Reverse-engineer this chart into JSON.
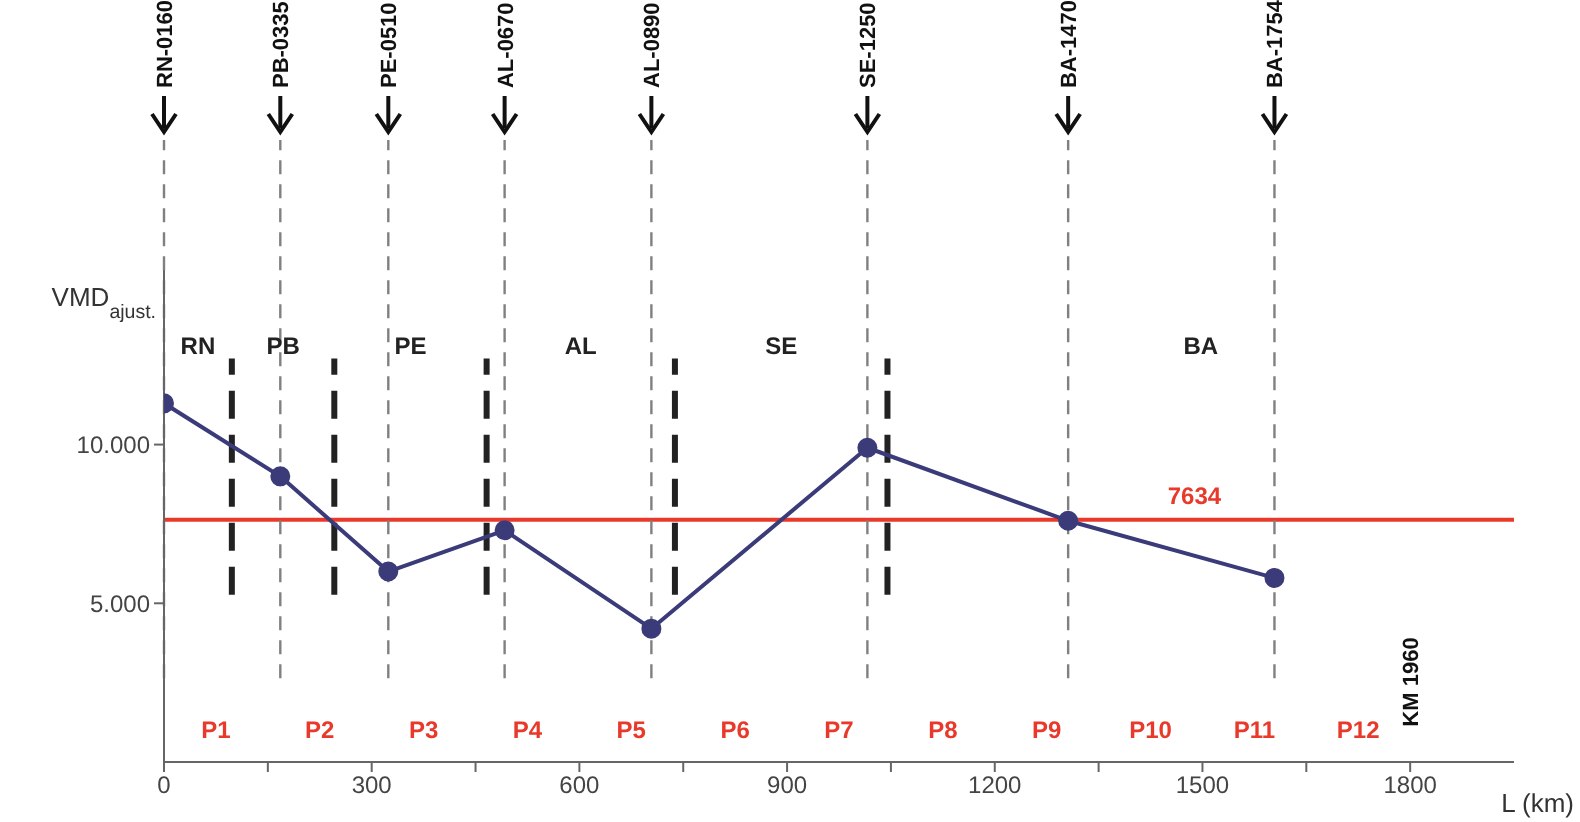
{
  "chart_data": {
    "type": "line",
    "xlabel": "L (km)",
    "ylabel": "VMD$_{ajust.}$",
    "x": [
      0,
      168,
      324,
      492,
      704,
      1016,
      1306,
      1604
    ],
    "series": [
      {
        "color": "#3b3b7a",
        "values": [
          11300,
          9000,
          6000,
          7300,
          4200,
          9900,
          7600,
          5800
        ]
      }
    ],
    "marker": "circle",
    "grid": false,
    "xlim": [
      0,
      1950
    ],
    "ylim": [
      0,
      15500
    ],
    "xticks": [
      {
        "value": 0,
        "label": "0"
      },
      {
        "value": 150,
        "label": null
      },
      300,
      {
        "value": 450,
        "label": null
      },
      600,
      {
        "value": 750,
        "label": null
      },
      900,
      {
        "value": 1050,
        "label": null
      },
      1200,
      {
        "value": 1350,
        "label": null
      },
      1500,
      {
        "value": 1650,
        "label": null
      },
      1800
    ],
    "yticks": [
      {
        "value": 5000,
        "label": "5.000"
      },
      {
        "value": 10000,
        "label": "10.000"
      }
    ],
    "ref_lines": [
      {
        "axis": "y",
        "value": 7634,
        "label": "7634",
        "color": "#e8392a",
        "line_style": "solid"
      },
      {
        "axis": "x",
        "value": 0,
        "label": "RN-0160",
        "color": "#808080",
        "line_style": "dashed"
      },
      {
        "axis": "x",
        "value": 168,
        "label": "PB-0335",
        "color": "#808080",
        "line_style": "dashed"
      },
      {
        "axis": "x",
        "value": 324,
        "label": "PE-0510",
        "color": "#808080",
        "line_style": "dashed"
      },
      {
        "axis": "x",
        "value": 492,
        "label": "AL-0670",
        "color": "#808080",
        "line_style": "dashed"
      },
      {
        "axis": "x",
        "value": 704,
        "label": "AL-0890",
        "color": "#808080",
        "line_style": "dashed"
      },
      {
        "axis": "x",
        "value": 1016,
        "label": "SE-1250",
        "color": "#808080",
        "line_style": "dashed"
      },
      {
        "axis": "x",
        "value": 1306,
        "label": "BA-1470",
        "color": "#808080",
        "line_style": "dashed"
      },
      {
        "axis": "x",
        "value": 1604,
        "label": "BA-1754",
        "color": "#808080",
        "line_style": "dashed"
      },
      {
        "axis": "x",
        "value": 98,
        "color": "#222222",
        "line_style": "dashed"
      },
      {
        "axis": "x",
        "value": 246,
        "color": "#222222",
        "line_style": "dashed"
      },
      {
        "axis": "x",
        "value": 466,
        "color": "#222222",
        "line_style": "dashed"
      },
      {
        "axis": "x",
        "value": 738,
        "color": "#222222",
        "line_style": "dashed"
      },
      {
        "axis": "x",
        "value": 1045,
        "color": "#222222",
        "line_style": "dashed"
      }
    ],
    "annotations": [
      "RN",
      "PB",
      "PE",
      "AL",
      "SE",
      "BA",
      "P1",
      "P2",
      "P3",
      "P4",
      "P5",
      "P6",
      "P7",
      "P8",
      "P9",
      "P10",
      "P11",
      "P12",
      "KM 1960"
    ]
  }
}
